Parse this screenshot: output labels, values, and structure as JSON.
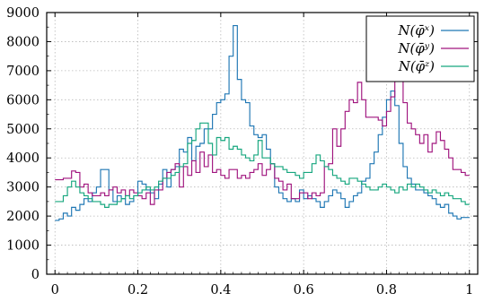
{
  "chart_data": {
    "type": "line",
    "step": true,
    "title": "",
    "xlabel": "",
    "ylabel": "",
    "xlim": [
      -0.02,
      1.02
    ],
    "ylim": [
      0,
      9000
    ],
    "xticks": [
      0,
      0.2,
      0.4,
      0.6,
      0.8,
      1
    ],
    "xtick_labels": [
      "0",
      "0.2",
      "0.4",
      "0.6",
      "0.8",
      "1"
    ],
    "yticks": [
      0,
      1000,
      2000,
      3000,
      4000,
      5000,
      6000,
      7000,
      8000,
      9000
    ],
    "ytick_labels": [
      "0",
      "1000",
      "2000",
      "3000",
      "4000",
      "5000",
      "6000",
      "7000",
      "8000",
      "9000"
    ],
    "grid": true,
    "legend_position": "top-right",
    "bin_edges_start": 0,
    "bin_width": 0.01,
    "series": [
      {
        "name": "N(φ̄ˣ)",
        "color": "#1f77b4",
        "values": [
          1850,
          1900,
          2100,
          2000,
          2300,
          2200,
          2400,
          2600,
          2500,
          2800,
          3000,
          3600,
          3600,
          2900,
          2500,
          2700,
          2600,
          2400,
          2500,
          2700,
          3200,
          3100,
          2900,
          2800,
          2600,
          3100,
          3600,
          3000,
          3600,
          3700,
          4300,
          4200,
          4700,
          3900,
          4400,
          4500,
          5000,
          5000,
          5500,
          5900,
          6000,
          6200,
          7500,
          8550,
          6700,
          6000,
          5900,
          5100,
          4800,
          4700,
          4800,
          4300,
          3800,
          3000,
          2800,
          2600,
          2500,
          2600,
          2500,
          2900,
          2600,
          2700,
          2600,
          2500,
          2300,
          2500,
          2700,
          2900,
          2800,
          2600,
          2300,
          2500,
          2700,
          2800,
          3200,
          3300,
          3800,
          4200,
          4800,
          5400,
          6000,
          6300,
          5800,
          4500,
          3700,
          3300,
          3100,
          2900,
          2900,
          2800,
          2700,
          2600,
          2400,
          2300,
          2400,
          2100,
          2000,
          1900,
          1950,
          1950
        ]
      },
      {
        "name": "N(φ̄ʸ)",
        "color": "#a0147e",
        "values": [
          3250,
          3250,
          3300,
          3300,
          3550,
          3500,
          3000,
          3100,
          2800,
          2700,
          2700,
          2800,
          2700,
          2900,
          3000,
          2800,
          2900,
          2700,
          2900,
          2800,
          2700,
          2600,
          2800,
          2400,
          2900,
          2900,
          3300,
          3500,
          3600,
          3800,
          3000,
          3700,
          3400,
          3900,
          3500,
          4200,
          3700,
          4100,
          3500,
          3600,
          3400,
          3300,
          3600,
          3600,
          3300,
          3400,
          3300,
          3500,
          3600,
          3800,
          3400,
          3600,
          3800,
          3300,
          3200,
          2900,
          3100,
          2600,
          2600,
          2800,
          2800,
          2600,
          2800,
          2700,
          2800,
          3700,
          3800,
          5000,
          4400,
          5000,
          5600,
          6000,
          5900,
          6600,
          6000,
          5400,
          5400,
          5400,
          5300,
          5100,
          5600,
          6100,
          7600,
          6800,
          5900,
          5200,
          5000,
          4800,
          4500,
          4800,
          4200,
          4500,
          4900,
          4600,
          4300,
          4000,
          3600,
          3600,
          3500,
          3400
        ]
      },
      {
        "name": "N(φ̄ᶻ)",
        "color": "#16a67e",
        "values": [
          2500,
          2500,
          2700,
          3000,
          3200,
          3000,
          2800,
          2700,
          2600,
          2500,
          2500,
          2400,
          2300,
          2400,
          2400,
          2500,
          2600,
          2700,
          2600,
          2700,
          2800,
          2900,
          3000,
          2900,
          3000,
          3200,
          3300,
          3300,
          3400,
          3500,
          3700,
          3800,
          4500,
          4600,
          5000,
          5200,
          5200,
          4500,
          4100,
          4700,
          4600,
          4700,
          4300,
          4400,
          4300,
          4100,
          4000,
          3900,
          4100,
          4600,
          4000,
          4000,
          3800,
          3700,
          3700,
          3600,
          3500,
          3500,
          3400,
          3300,
          3500,
          3500,
          3800,
          4100,
          3900,
          3700,
          3600,
          3400,
          3300,
          3200,
          3100,
          3300,
          3300,
          3200,
          3100,
          3000,
          2900,
          2900,
          3000,
          3100,
          3000,
          2900,
          2800,
          3000,
          2900,
          3100,
          3000,
          3100,
          3000,
          2900,
          2800,
          2900,
          2800,
          2700,
          2800,
          2700,
          2600,
          2600,
          2500,
          2400
        ]
      }
    ]
  }
}
